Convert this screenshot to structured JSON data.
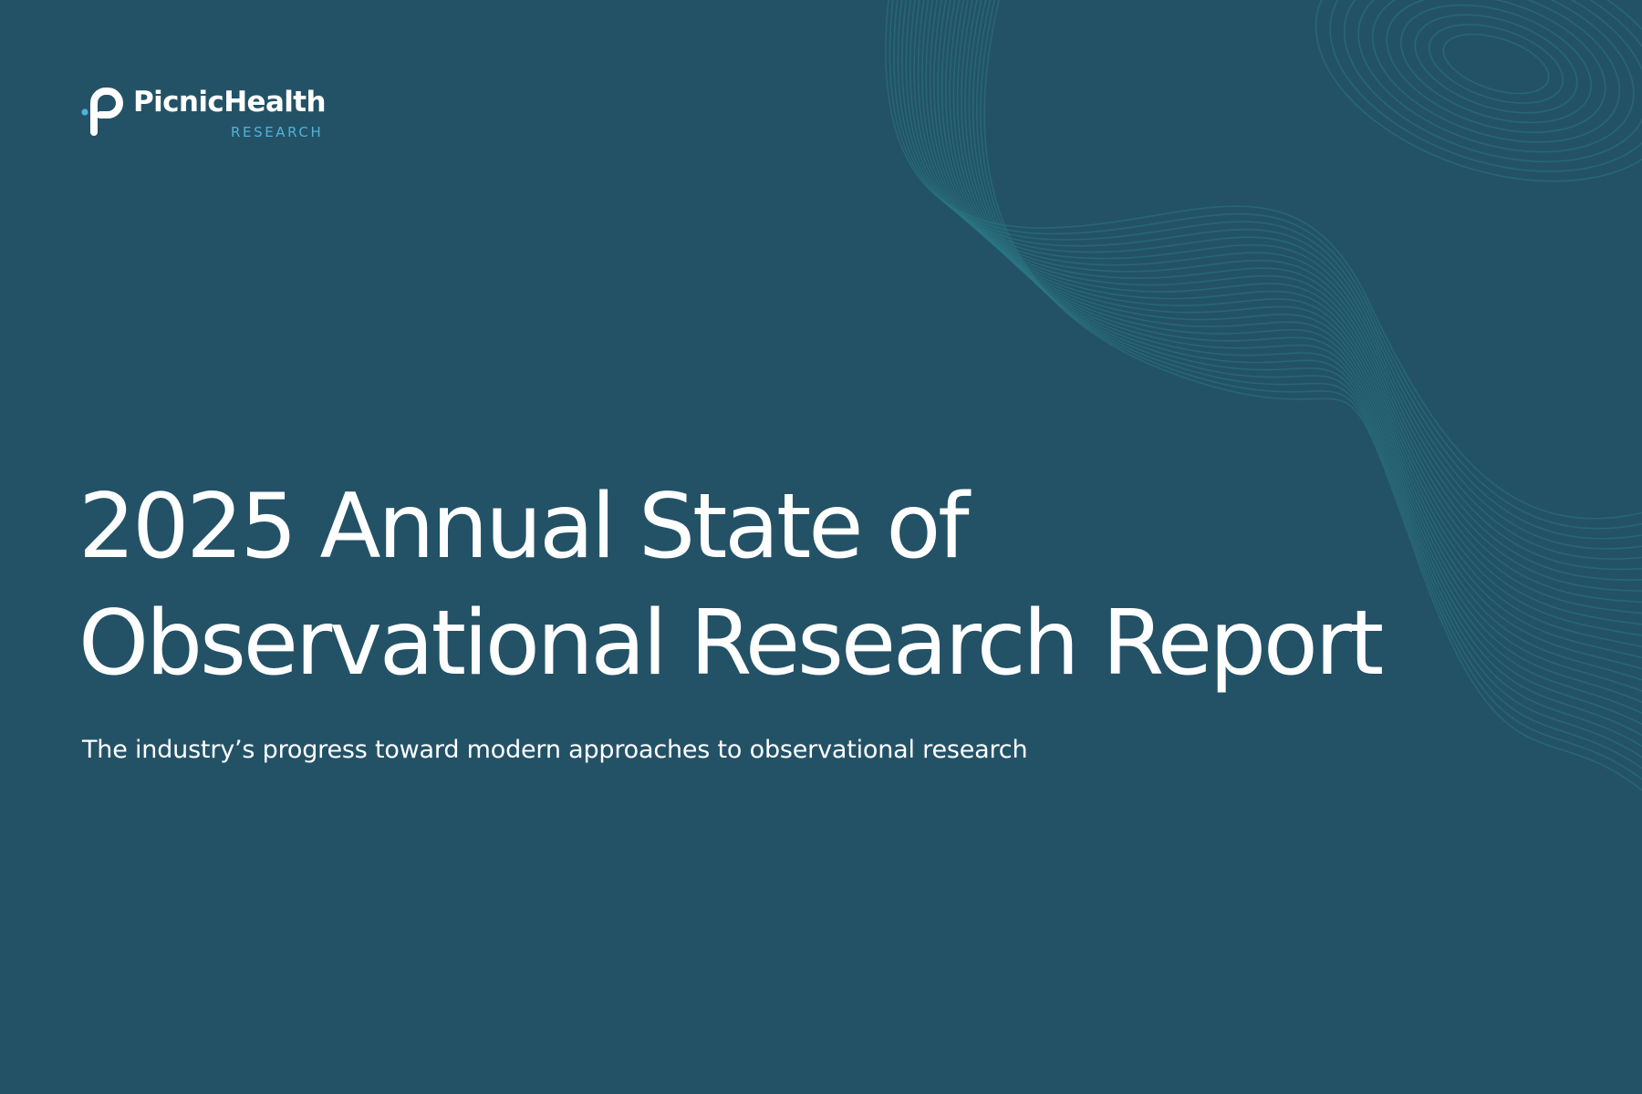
{
  "brand": {
    "name": "PicnicHealth",
    "sub_label": "RESEARCH",
    "logo_icon": "picnichealth-logo-icon",
    "colors": {
      "background": "#235267",
      "accent": "#4fb3d9",
      "text": "#ffffff",
      "contour": "#2c7683"
    }
  },
  "cover": {
    "title_line_1": "2025 Annual State of",
    "title_line_2": "Observational Research Report",
    "subtitle": "The industry’s progress toward modern approaches to observational research"
  }
}
